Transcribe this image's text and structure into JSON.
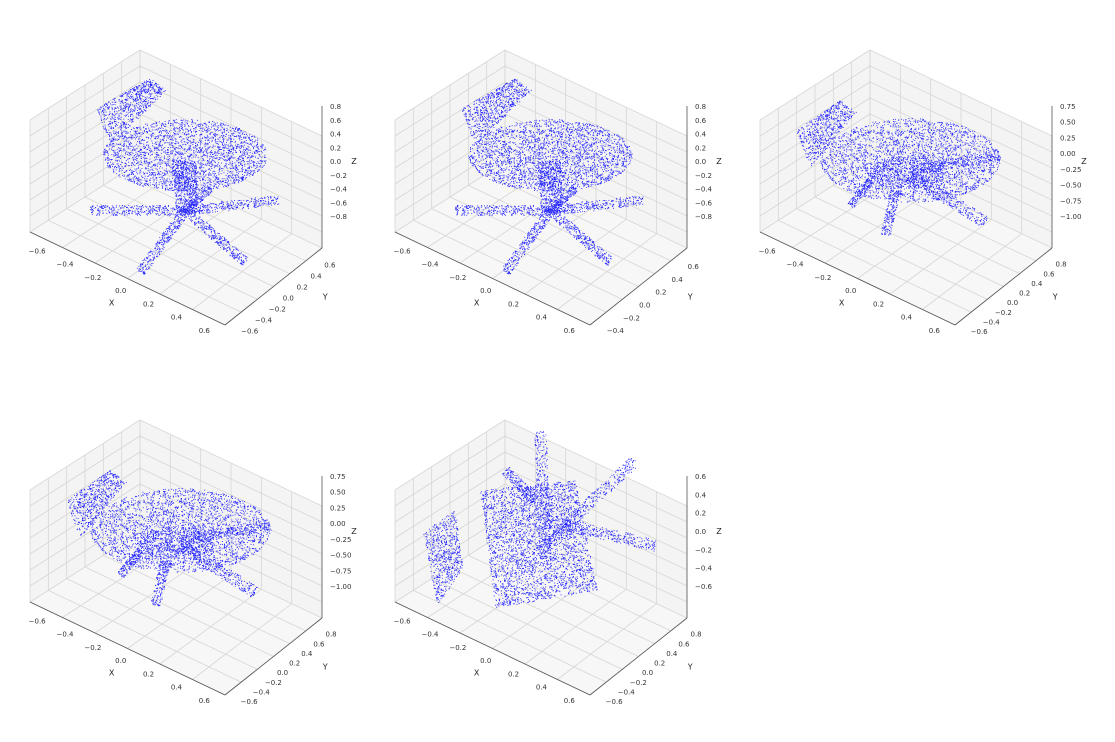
{
  "point_color": "#1f1fff",
  "chart_data": [
    {
      "type": "scatter",
      "view": "default-1",
      "xlabel": "X",
      "ylabel": "Y",
      "zlabel": "Z",
      "x_ticks": [
        "−0.6",
        "−0.4",
        "−0.2",
        "0.0",
        "0.2",
        "0.4",
        "0.6"
      ],
      "y_ticks": [
        "−0.6",
        "−0.4",
        "−0.2",
        "0.0",
        "0.2",
        "0.4",
        "0.6"
      ],
      "z_ticks": [
        "0.8",
        "0.6",
        "0.4",
        "0.2",
        "0.0",
        "−0.2",
        "−0.4",
        "−0.6",
        "−0.8"
      ],
      "pose": "upright",
      "grid": true
    },
    {
      "type": "scatter",
      "view": "default-2",
      "xlabel": "X",
      "ylabel": "Y",
      "zlabel": "Z",
      "x_ticks": [
        "−0.6",
        "−0.4",
        "−0.2",
        "0.0",
        "0.2",
        "0.4",
        "0.6"
      ],
      "y_ticks": [
        "−0.4",
        "−0.2",
        "0.0",
        "0.2",
        "0.4",
        "0.6"
      ],
      "z_ticks": [
        "0.8",
        "0.6",
        "0.4",
        "0.2",
        "0.0",
        "−0.2",
        "−0.4",
        "−0.6",
        "−0.8"
      ],
      "pose": "upright",
      "grid": true
    },
    {
      "type": "scatter",
      "view": "tilted-1",
      "xlabel": "X",
      "ylabel": "Y",
      "zlabel": "Z",
      "x_ticks": [
        "−0.6",
        "−0.4",
        "−0.2",
        "0.0",
        "0.2",
        "0.4",
        "0.6"
      ],
      "y_ticks": [
        "−0.6",
        "−0.4",
        "−0.2",
        "0.0",
        "0.2",
        "0.4",
        "0.6",
        "0.8"
      ],
      "z_ticks": [
        "0.75",
        "0.50",
        "0.25",
        "0.00",
        "−0.25",
        "−0.50",
        "−0.75",
        "−1.00"
      ],
      "pose": "tilted",
      "grid": true
    },
    {
      "type": "scatter",
      "view": "tilted-2",
      "xlabel": "X",
      "ylabel": "Y",
      "zlabel": "Z",
      "x_ticks": [
        "−0.6",
        "−0.4",
        "−0.2",
        "0.0",
        "0.2",
        "0.4",
        "0.6"
      ],
      "y_ticks": [
        "−0.6",
        "−0.4",
        "−0.2",
        "0.0",
        "0.2",
        "0.4",
        "0.6",
        "0.8"
      ],
      "z_ticks": [
        "0.75",
        "0.50",
        "0.25",
        "0.00",
        "−0.25",
        "−0.50",
        "−0.75",
        "−1.00"
      ],
      "pose": "tilted",
      "grid": true
    },
    {
      "type": "scatter",
      "view": "top-down",
      "xlabel": "X",
      "ylabel": "Y",
      "zlabel": "Z",
      "x_ticks": [
        "−0.6",
        "−0.4",
        "−0.2",
        "0.0",
        "0.2",
        "0.4",
        "0.6"
      ],
      "y_ticks": [
        "−0.6",
        "−0.4",
        "−0.2",
        "0.0",
        "0.2",
        "0.4",
        "0.6",
        "0.8"
      ],
      "z_ticks": [
        "0.6",
        "0.4",
        "0.2",
        "0.0",
        "−0.2",
        "−0.4",
        "−0.6"
      ],
      "pose": "flipped",
      "grid": true
    }
  ]
}
